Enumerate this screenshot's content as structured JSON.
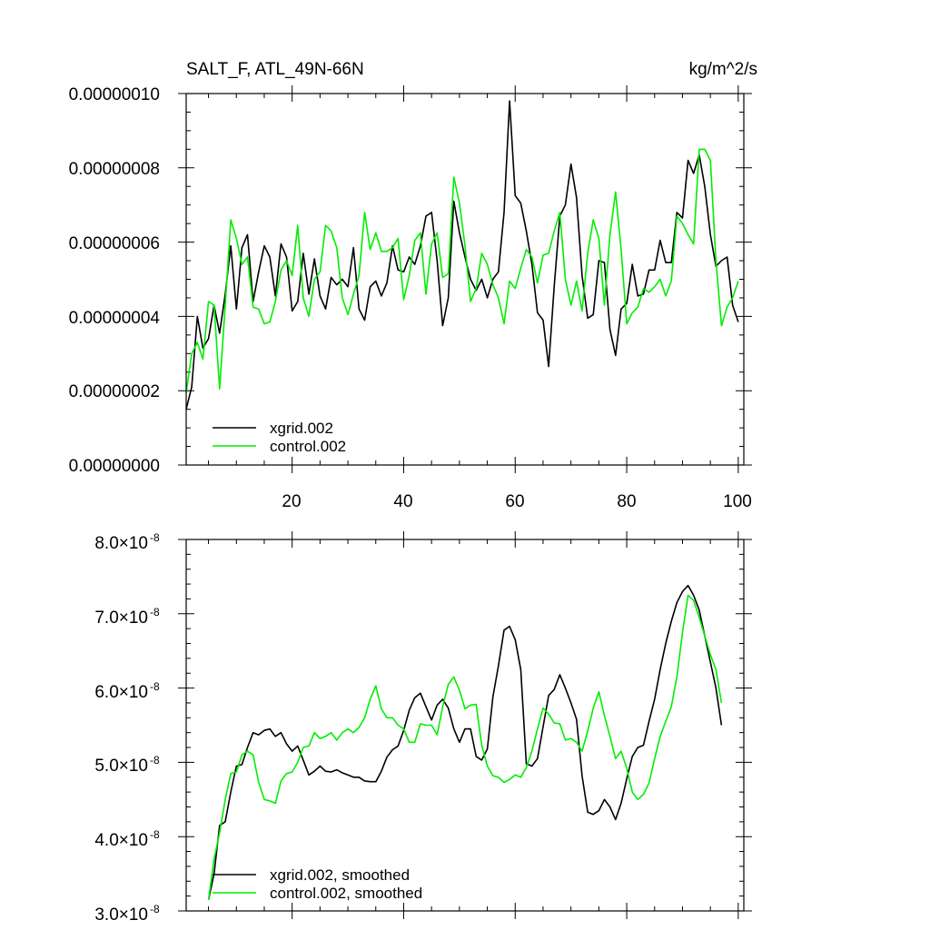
{
  "chart_data": [
    {
      "type": "line",
      "title": "SALT_F, ATL_49N-66N",
      "units": "kg/m^2/s",
      "xlabel": "",
      "ylabel": "",
      "xlim": [
        1,
        101
      ],
      "ylim": [
        0,
        1e-07
      ],
      "xticks": [
        20,
        40,
        60,
        80,
        100
      ],
      "xtick_labels": [
        "20",
        "40",
        "60",
        "80",
        "100"
      ],
      "yticks": [
        0,
        2e-08,
        4e-08,
        6e-08,
        8e-08,
        1e-07
      ],
      "ytick_labels": [
        "0.00000000",
        "0.00000002",
        "0.00000004",
        "0.00000006",
        "0.00000008",
        "0.00000010"
      ],
      "legend_position": "bottom-left",
      "series": [
        {
          "name": "xgrid.002",
          "color": "#000000",
          "values": [
            1.5e-08,
            2.1e-08,
            4e-08,
            3.15e-08,
            3.4e-08,
            4.3e-08,
            3.55e-08,
            4.6e-08,
            5.9e-08,
            4.2e-08,
            5.85e-08,
            6.2e-08,
            4.4e-08,
            5.2e-08,
            5.9e-08,
            5.6e-08,
            4.55e-08,
            5.95e-08,
            5.6e-08,
            4.15e-08,
            4.4e-08,
            5.7e-08,
            4.6e-08,
            5.55e-08,
            4.55e-08,
            4.2e-08,
            5.05e-08,
            4.85e-08,
            5e-08,
            4.8e-08,
            5.85e-08,
            4.2e-08,
            3.9e-08,
            4.8e-08,
            4.95e-08,
            4.55e-08,
            4.9e-08,
            5.9e-08,
            5.25e-08,
            5.2e-08,
            5.6e-08,
            5.4e-08,
            5.9e-08,
            6.7e-08,
            6.8e-08,
            5.5e-08,
            3.75e-08,
            4.5e-08,
            7.1e-08,
            6.25e-08,
            5.6e-08,
            5e-08,
            4.7e-08,
            5e-08,
            4.5e-08,
            5e-08,
            5.2e-08,
            6.8e-08,
            9.8e-08,
            7.25e-08,
            7.05e-08,
            6.3e-08,
            5.4e-08,
            4.1e-08,
            3.9e-08,
            2.65e-08,
            4.8e-08,
            6.7e-08,
            7e-08,
            8.1e-08,
            7.2e-08,
            5.1e-08,
            3.95e-08,
            4.05e-08,
            5.5e-08,
            5.45e-08,
            3.65e-08,
            2.95e-08,
            4.2e-08,
            4.35e-08,
            5.4e-08,
            4.55e-08,
            4.6e-08,
            5.25e-08,
            5.25e-08,
            6.05e-08,
            5.45e-08,
            5.45e-08,
            6.8e-08,
            6.65e-08,
            8.2e-08,
            7.85e-08,
            8.35e-08,
            7.5e-08,
            6.2e-08,
            5.35e-08,
            5.5e-08,
            5.6e-08,
            4.3e-08,
            3.85e-08
          ]
        },
        {
          "name": "control.002",
          "color": "#00ee00",
          "values": [
            1.95e-08,
            3e-08,
            3.3e-08,
            2.85e-08,
            4.4e-08,
            4.3e-08,
            2.05e-08,
            4.3e-08,
            6.6e-08,
            6.1e-08,
            5.4e-08,
            5.6e-08,
            4.25e-08,
            4.2e-08,
            3.8e-08,
            3.85e-08,
            4.4e-08,
            5.25e-08,
            5.5e-08,
            5.1e-08,
            6.45e-08,
            4.5e-08,
            4e-08,
            5e-08,
            5.2e-08,
            6.45e-08,
            6.3e-08,
            5.85e-08,
            4.5e-08,
            4.05e-08,
            4.6e-08,
            5.1e-08,
            6.8e-08,
            5.8e-08,
            6.25e-08,
            5.75e-08,
            5.75e-08,
            5.85e-08,
            6.1e-08,
            4.45e-08,
            5.1e-08,
            6.05e-08,
            6.25e-08,
            4.6e-08,
            5.95e-08,
            6.25e-08,
            5.05e-08,
            5.15e-08,
            7.75e-08,
            7.05e-08,
            5.9e-08,
            4.4e-08,
            4.75e-08,
            5.7e-08,
            5.4e-08,
            4.85e-08,
            4.5e-08,
            3.8e-08,
            4.95e-08,
            4.75e-08,
            5.3e-08,
            5.8e-08,
            5.6e-08,
            4.9e-08,
            5.65e-08,
            5.7e-08,
            6.3e-08,
            6.8e-08,
            5e-08,
            4.3e-08,
            4.95e-08,
            4.15e-08,
            5.7e-08,
            6.6e-08,
            6.1e-08,
            4.3e-08,
            6.2e-08,
            7.35e-08,
            5.8e-08,
            3.8e-08,
            4.1e-08,
            4.25e-08,
            4.75e-08,
            4.65e-08,
            4.8e-08,
            5e-08,
            4.55e-08,
            4.95e-08,
            6.7e-08,
            6.5e-08,
            6.2e-08,
            5.95e-08,
            8.5e-08,
            8.5e-08,
            8.2e-08,
            5.5e-08,
            3.75e-08,
            4.25e-08,
            4.5e-08,
            4.95e-08
          ]
        }
      ]
    },
    {
      "type": "line",
      "title": "",
      "xlabel": "",
      "ylabel": "",
      "xlim": [
        1,
        101
      ],
      "ylim": [
        3e-08,
        8e-08
      ],
      "xticks": [
        20,
        40,
        60,
        80,
        100
      ],
      "yticks": [
        3e-08,
        4e-08,
        5e-08,
        6e-08,
        7e-08,
        8e-08
      ],
      "ytick_labels": [
        {
          "mantissa": "3.0×10",
          "exponent": "-8"
        },
        {
          "mantissa": "4.0×10",
          "exponent": "-8"
        },
        {
          "mantissa": "5.0×10",
          "exponent": "-8"
        },
        {
          "mantissa": "6.0×10",
          "exponent": "-8"
        },
        {
          "mantissa": "7.0×10",
          "exponent": "-8"
        },
        {
          "mantissa": "8.0×10",
          "exponent": "-8"
        }
      ],
      "legend_position": "bottom-left",
      "series": [
        {
          "name": "xgrid.002, smoothed",
          "color": "#000000",
          "x": [
            5,
            6,
            7,
            8,
            9,
            10,
            11,
            12,
            13,
            14,
            15,
            16,
            17,
            18,
            19,
            20,
            21,
            22,
            23,
            24,
            25,
            26,
            27,
            28,
            29,
            30,
            31,
            32,
            33,
            34,
            35,
            36,
            37,
            38,
            39,
            40,
            41,
            42,
            43,
            44,
            45,
            46,
            47,
            48,
            49,
            50,
            51,
            52,
            53,
            54,
            55,
            56,
            57,
            58,
            59,
            60,
            61,
            62,
            63,
            64,
            65,
            66,
            67,
            68,
            69,
            70,
            71,
            72,
            73,
            74,
            75,
            76,
            77,
            78,
            79,
            80,
            81,
            82,
            83,
            84,
            85,
            86,
            87,
            88,
            89,
            90,
            91,
            92,
            93,
            94,
            95,
            96,
            97
          ],
          "values": [
            3.15e-08,
            3.5e-08,
            4.15e-08,
            4.2e-08,
            4.6e-08,
            4.95e-08,
            4.97e-08,
            5.2e-08,
            5.4e-08,
            5.37e-08,
            5.43e-08,
            5.45e-08,
            5.35e-08,
            5.4e-08,
            5.25e-08,
            5.15e-08,
            5.22e-08,
            5.03e-08,
            4.83e-08,
            4.88e-08,
            4.95e-08,
            4.88e-08,
            4.87e-08,
            4.9e-08,
            4.86e-08,
            4.83e-08,
            4.8e-08,
            4.8e-08,
            4.75e-08,
            4.74e-08,
            4.74e-08,
            4.88e-08,
            5.07e-08,
            5.17e-08,
            5.22e-08,
            5.43e-08,
            5.7e-08,
            5.87e-08,
            5.93e-08,
            5.75e-08,
            5.57e-08,
            5.77e-08,
            5.85e-08,
            5.73e-08,
            5.45e-08,
            5.27e-08,
            5.45e-08,
            5.45e-08,
            5.08e-08,
            5.03e-08,
            5.18e-08,
            5.88e-08,
            6.3e-08,
            6.78e-08,
            6.83e-08,
            6.65e-08,
            6.25e-08,
            4.98e-08,
            4.95e-08,
            5.05e-08,
            5.48e-08,
            5.9e-08,
            5.98e-08,
            6.18e-08,
            6e-08,
            5.8e-08,
            5.58e-08,
            4.82e-08,
            4.33e-08,
            4.3e-08,
            4.35e-08,
            4.5e-08,
            4.4e-08,
            4.23e-08,
            4.45e-08,
            4.78e-08,
            5.08e-08,
            5.2e-08,
            5.23e-08,
            5.55e-08,
            5.85e-08,
            6.25e-08,
            6.6e-08,
            6.9e-08,
            7.15e-08,
            7.3e-08,
            7.38e-08,
            7.25e-08,
            7.05e-08,
            6.7e-08,
            6.35e-08,
            6e-08,
            5.5e-08
          ]
        },
        {
          "name": "control.002, smoothed",
          "color": "#00ee00",
          "x": [
            5,
            6,
            7,
            8,
            9,
            10,
            11,
            12,
            13,
            14,
            15,
            16,
            17,
            18,
            19,
            20,
            21,
            22,
            23,
            24,
            25,
            26,
            27,
            28,
            29,
            30,
            31,
            32,
            33,
            34,
            35,
            36,
            37,
            38,
            39,
            40,
            41,
            42,
            43,
            44,
            45,
            46,
            47,
            48,
            49,
            50,
            51,
            52,
            53,
            54,
            55,
            56,
            57,
            58,
            59,
            60,
            61,
            62,
            63,
            64,
            65,
            66,
            67,
            68,
            69,
            70,
            71,
            72,
            73,
            74,
            75,
            76,
            77,
            78,
            79,
            80,
            81,
            82,
            83,
            84,
            85,
            86,
            87,
            88,
            89,
            90,
            91,
            92,
            93,
            94,
            95,
            96,
            97
          ],
          "values": [
            3.15e-08,
            3.7e-08,
            4.05e-08,
            4.5e-08,
            4.85e-08,
            4.87e-08,
            5.1e-08,
            5.15e-08,
            5.1e-08,
            4.73e-08,
            4.5e-08,
            4.48e-08,
            4.45e-08,
            4.75e-08,
            4.85e-08,
            4.87e-08,
            5e-08,
            5.2e-08,
            5.22e-08,
            5.4e-08,
            5.32e-08,
            5.35e-08,
            5.4e-08,
            5.3e-08,
            5.4e-08,
            5.45e-08,
            5.4e-08,
            5.47e-08,
            5.6e-08,
            5.85e-08,
            6.03e-08,
            5.72e-08,
            5.6e-08,
            5.6e-08,
            5.5e-08,
            5.45e-08,
            5.27e-08,
            5.27e-08,
            5.52e-08,
            5.5e-08,
            5.5e-08,
            5.37e-08,
            5.75e-08,
            6.05e-08,
            6.15e-08,
            5.97e-08,
            5.72e-08,
            5.77e-08,
            5.78e-08,
            5.23e-08,
            4.95e-08,
            4.82e-08,
            4.8e-08,
            4.73e-08,
            4.77e-08,
            4.83e-08,
            4.8e-08,
            4.93e-08,
            5.15e-08,
            5.45e-08,
            5.73e-08,
            5.65e-08,
            5.53e-08,
            5.52e-08,
            5.3e-08,
            5.32e-08,
            5.27e-08,
            5.15e-08,
            5.42e-08,
            5.73e-08,
            5.95e-08,
            5.63e-08,
            5.35e-08,
            5.05e-08,
            5.15e-08,
            4.92e-08,
            4.6e-08,
            4.5e-08,
            4.57e-08,
            4.72e-08,
            5.05e-08,
            5.35e-08,
            5.55e-08,
            5.75e-08,
            6.15e-08,
            6.75e-08,
            7.25e-08,
            7.18e-08,
            6.95e-08,
            6.7e-08,
            6.45e-08,
            6.25e-08,
            5.8e-08
          ]
        }
      ]
    }
  ]
}
